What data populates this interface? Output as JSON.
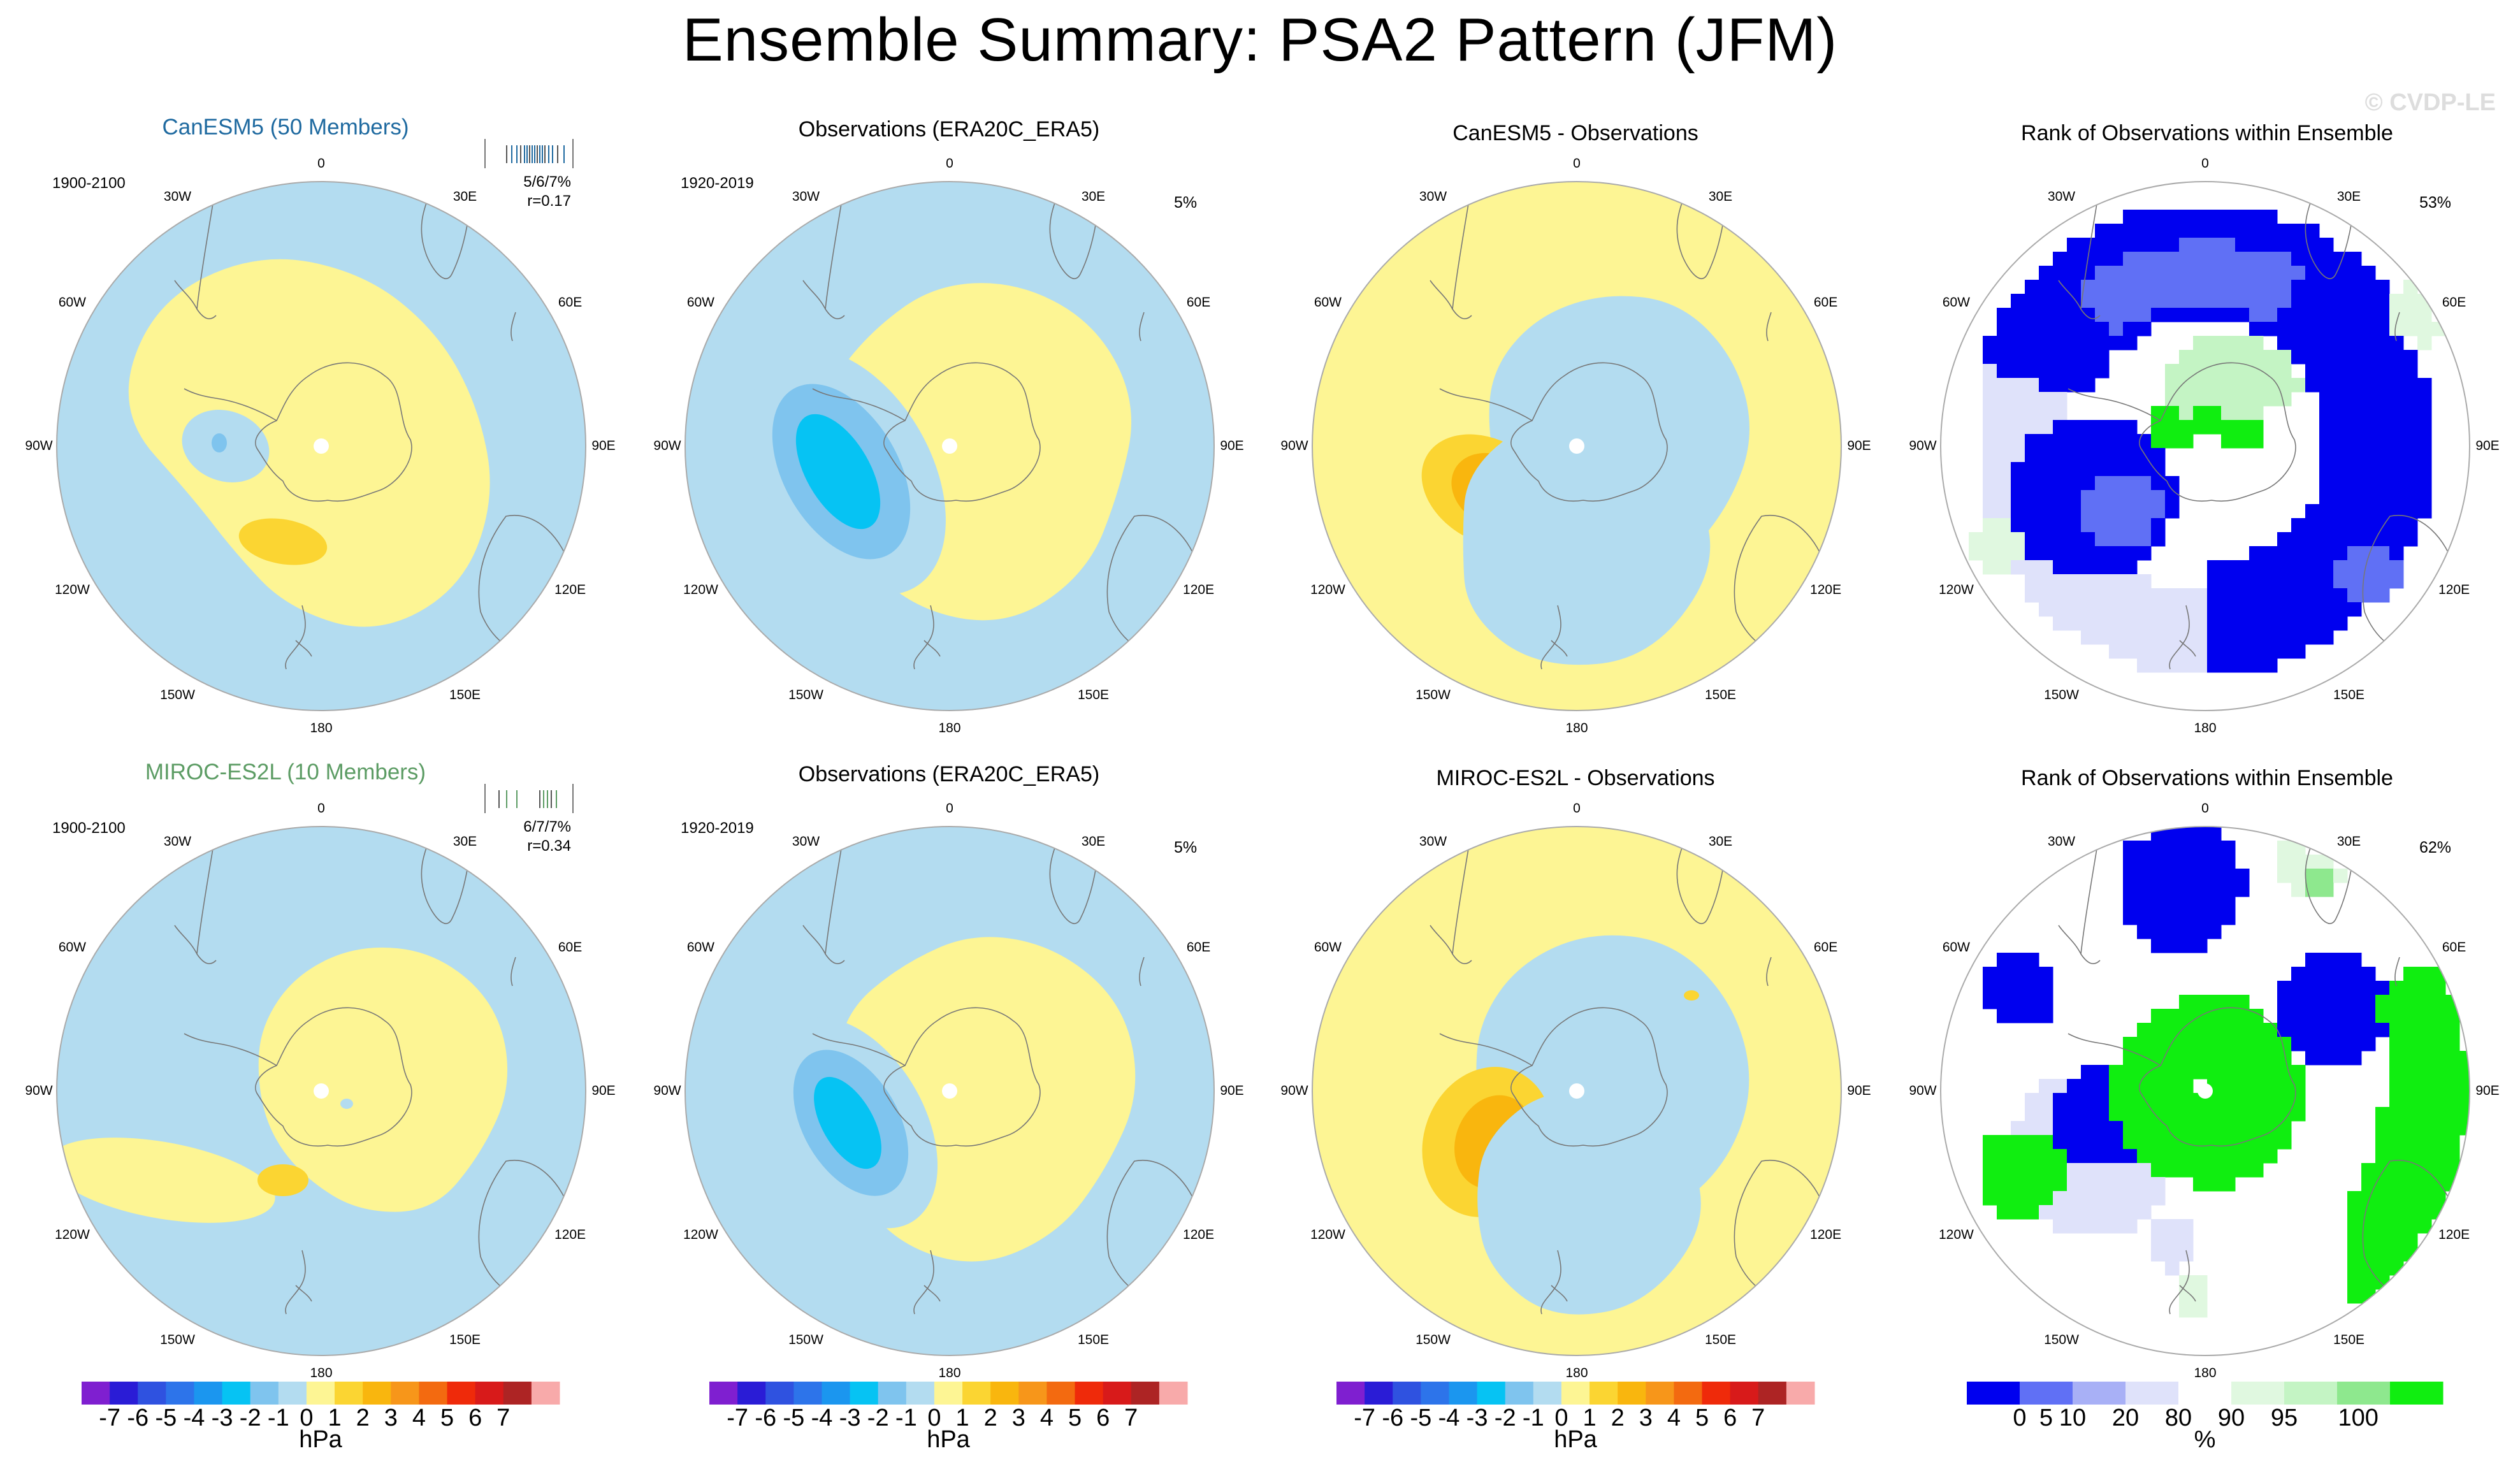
{
  "title": "Ensemble Summary: PSA2 Pattern (JFM)",
  "watermark": "© CVDP-LE",
  "colors": {
    "neg7": "#7f1fd0",
    "neg6": "#2a1cd6",
    "neg5": "#2f52e0",
    "neg4": "#2d74ea",
    "neg3": "#1b96ef",
    "neg2": "#06c3f3",
    "neg1": "#7fc4ee",
    "neg0": "#b3dcf0",
    "pos0": "#fdf594",
    "pos1": "#fbd532",
    "pos2": "#f9b60e",
    "pos3": "#f7961a",
    "pos4": "#f36a10",
    "pos5": "#ef2a0a",
    "pos6": "#d81a1a",
    "pos7": "#ad2424",
    "pos8": "#f8aaaa",
    "rank_b1": "#0000ef",
    "rank_b2": "#6070f5",
    "rank_b3": "#a8b0f6",
    "rank_b4": "#dfe2fa",
    "rank_b5": "#ffffff",
    "rank_b6": "#e0f8e0",
    "rank_b7": "#c4f4c4",
    "rank_b8": "#8ee88e",
    "rank_b9": "#10ee10"
  },
  "longitude_labels": [
    "0",
    "30E",
    "60E",
    "90E",
    "120E",
    "150E",
    "180",
    "150W",
    "120W",
    "90W",
    "60W",
    "30W"
  ],
  "rows": [
    {
      "model_title": "CanESM5 (50 Members)",
      "model_color": "#1f6aa0",
      "model_period": "1900-2100",
      "pattern_corr": "5/6/7%",
      "r_value": "r=0.17",
      "obs_title": "Observations (ERA20C_ERA5)",
      "obs_period": "1920-2019",
      "obs_pct": "5%",
      "diff_title": "CanESM5 - Observations",
      "rank_title": "Rank of Observations within Ensemble",
      "rank_pct": "53%"
    },
    {
      "model_title": "MIROC-ES2L (10 Members)",
      "model_color": "#5c9c64",
      "model_period": "1900-2100",
      "pattern_corr": "6/7/7%",
      "r_value": "r=0.34",
      "obs_title": "Observations (ERA20C_ERA5)",
      "obs_period": "1920-2019",
      "obs_pct": "5%",
      "diff_title": "MIROC-ES2L - Observations",
      "rank_title": "Rank of Observations within Ensemble",
      "rank_pct": "62%"
    }
  ],
  "colorbar_hpa": {
    "labels": [
      "-7",
      "-6",
      "-5",
      "-4",
      "-3",
      "-2",
      "-1",
      "0",
      "1",
      "2",
      "3",
      "4",
      "5",
      "6",
      "7"
    ],
    "units": "hPa"
  },
  "colorbar_rank": {
    "labels": [
      "0",
      "5",
      "10",
      "20",
      "80",
      "90",
      "95",
      "100"
    ],
    "units": "%"
  }
}
